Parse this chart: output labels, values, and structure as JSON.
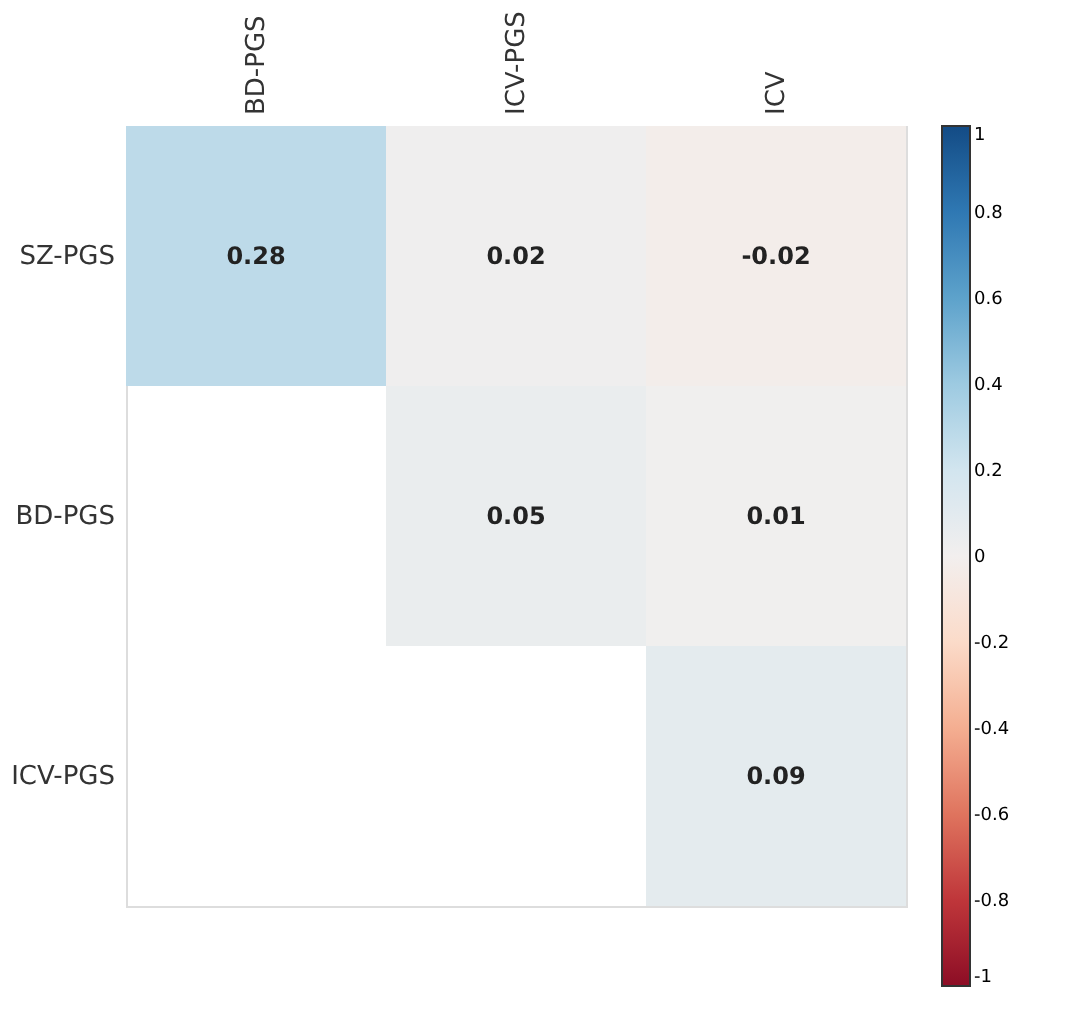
{
  "chart_data": {
    "type": "heatmap",
    "categories": [
      "BD-PGS",
      "ICV-PGS",
      "ICV"
    ],
    "y_categories": [
      "SZ-PGS",
      "BD-PGS",
      "ICV-PGS"
    ],
    "cells": [
      [
        0.28,
        0.02,
        -0.02
      ],
      [
        null,
        0.05,
        0.01
      ],
      [
        null,
        null,
        0.09
      ]
    ],
    "data_labels": true,
    "clim": [
      -1,
      1
    ],
    "cticks": [
      -1,
      -0.8,
      -0.6,
      -0.4,
      -0.2,
      0,
      0.2,
      0.4,
      0.6,
      0.8,
      1
    ]
  }
}
